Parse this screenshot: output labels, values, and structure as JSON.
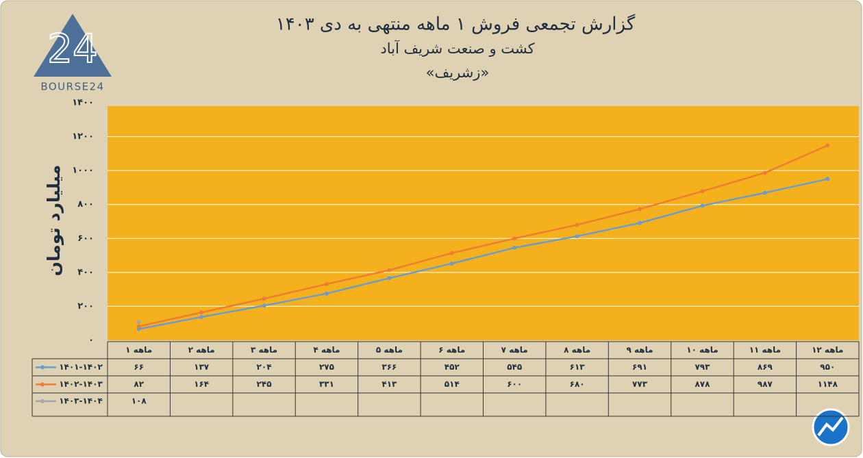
{
  "logo": {
    "number": "24",
    "text": "BOURSE24"
  },
  "chart_data": {
    "type": "line",
    "title": "گزارش تجمعی فروش ۱ ماهه منتهی به دی ۱۴۰۳",
    "subtitle": "کشت و صنعت شریف آباد",
    "subtitle2": "«زشریف»",
    "y_label": "میلیارد تومان",
    "categories": [
      "۱ ماهه",
      "۲ ماهه",
      "۳ ماهه",
      "۴ ماهه",
      "۵ ماهه",
      "۶ ماهه",
      "۷ ماهه",
      "۸ ماهه",
      "۹ ماهه",
      "۱۰ ماهه",
      "۱۱ ماهه",
      "۱۲ ماهه"
    ],
    "ylim": [
      0,
      1400
    ],
    "yticks": [
      {
        "value": 0,
        "label": "۰"
      },
      {
        "value": 200,
        "label": "۲۰۰"
      },
      {
        "value": 400,
        "label": "۴۰۰"
      },
      {
        "value": 600,
        "label": "۶۰۰"
      },
      {
        "value": 800,
        "label": "۸۰۰"
      },
      {
        "value": 1000,
        "label": "۱۰۰۰"
      },
      {
        "value": 1200,
        "label": "۱۲۰۰"
      },
      {
        "value": 1400,
        "label": "۱۴۰۰"
      }
    ],
    "grid": true,
    "series": [
      {
        "name": "۱۴۰۱-۱۴۰۲",
        "color": "#6a9cd0",
        "values": [
          66,
          137,
          204,
          275,
          366,
          452,
          545,
          613,
          691,
          793,
          869,
          950
        ],
        "value_labels": [
          "۶۶",
          "۱۳۷",
          "۲۰۴",
          "۲۷۵",
          "۳۶۶",
          "۴۵۲",
          "۵۴۵",
          "۶۱۳",
          "۶۹۱",
          "۷۹۳",
          "۸۶۹",
          "۹۵۰"
        ]
      },
      {
        "name": "۱۴۰۲-۱۴۰۳",
        "color": "#ed7d31",
        "values": [
          82,
          164,
          245,
          331,
          413,
          514,
          600,
          680,
          773,
          878,
          987,
          1148
        ],
        "value_labels": [
          "۸۲",
          "۱۶۴",
          "۲۴۵",
          "۳۳۱",
          "۴۱۳",
          "۵۱۴",
          "۶۰۰",
          "۶۸۰",
          "۷۷۳",
          "۸۷۸",
          "۹۸۷",
          "۱۱۴۸"
        ]
      },
      {
        "name": "۱۴۰۳-۱۴۰۴",
        "color": "#a5a5a5",
        "values": [
          108,
          null,
          null,
          null,
          null,
          null,
          null,
          null,
          null,
          null,
          null,
          null
        ],
        "value_labels": [
          "۱۰۸",
          null,
          null,
          null,
          null,
          null,
          null,
          null,
          null,
          null,
          null,
          null
        ]
      }
    ]
  }
}
